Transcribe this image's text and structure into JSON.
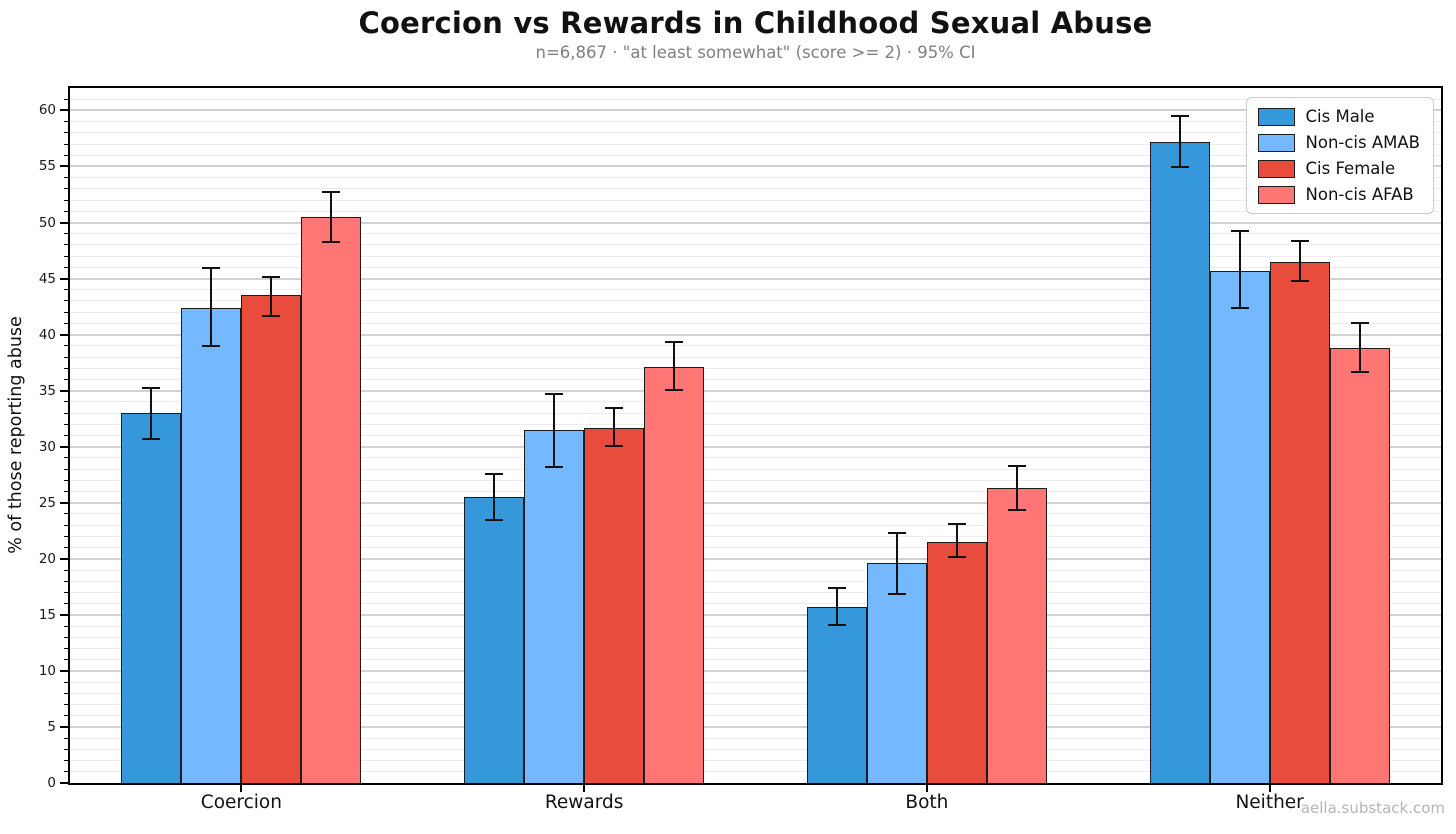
{
  "chart_data": {
    "type": "bar",
    "title": "Coercion vs Rewards in Childhood Sexual Abuse",
    "subtitle": "n=6,867 · \"at least somewhat\" (score >= 2) · 95% CI",
    "ylabel": "% of those reporting abuse",
    "footer": "aella.substack.com",
    "categories": [
      "Coercion",
      "Rewards",
      "Both",
      "Neither"
    ],
    "series": [
      {
        "name": "Cis Male",
        "color": "#3498db",
        "values": [
          33.0,
          25.5,
          15.7,
          57.2
        ],
        "ci_low": [
          30.6,
          23.4,
          14.0,
          54.9
        ],
        "ci_high": [
          35.3,
          27.7,
          17.5,
          59.6
        ]
      },
      {
        "name": "Non-cis AMAB",
        "color": "#74b9ff",
        "values": [
          42.4,
          31.5,
          19.6,
          45.7
        ],
        "ci_low": [
          38.9,
          28.1,
          16.8,
          42.3
        ],
        "ci_high": [
          46.0,
          34.8,
          22.4,
          49.3
        ]
      },
      {
        "name": "Cis Female",
        "color": "#e74c3c",
        "values": [
          43.5,
          31.7,
          21.5,
          46.5
        ],
        "ci_low": [
          41.6,
          30.0,
          20.1,
          44.7
        ],
        "ci_high": [
          45.2,
          33.5,
          23.2,
          48.4
        ]
      },
      {
        "name": "Non-cis AFAB",
        "color": "#ff7675",
        "values": [
          50.5,
          37.1,
          26.3,
          38.8
        ],
        "ci_low": [
          48.2,
          35.0,
          24.3,
          36.6
        ],
        "ci_high": [
          52.8,
          39.4,
          28.4,
          41.1
        ]
      }
    ],
    "ylim": [
      0,
      62
    ],
    "yticks_major": [
      0,
      5,
      10,
      15,
      20,
      25,
      30,
      35,
      40,
      45,
      50,
      55,
      60
    ],
    "minor_step": 1,
    "grid": true,
    "legend_position": "top-right",
    "error_bar_color": "#111111",
    "bar_edge_color": "#1c1c1c"
  }
}
